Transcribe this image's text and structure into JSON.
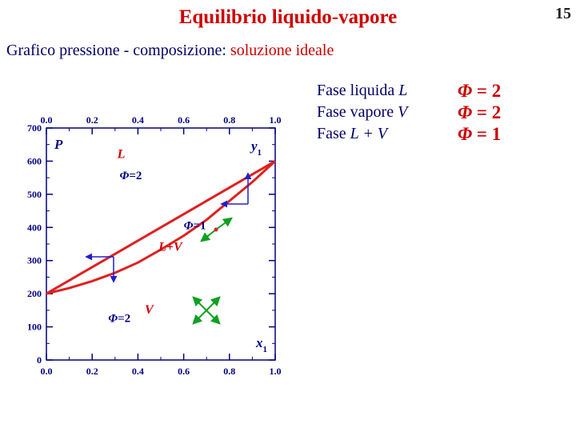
{
  "slide": {
    "title": "Equilibrio liquido-vapore",
    "page_number": "15",
    "subtitle_prefix": "Grafico pressione - composizione: ",
    "subtitle_highlight": "soluzione ideale"
  },
  "phases": [
    {
      "label_text": "Fase liquida ",
      "label_symbol": "L",
      "phi_symbol": "Φ",
      "phi_value": "= 2"
    },
    {
      "label_text": "Fase vapore ",
      "label_symbol": "V",
      "phi_symbol": "Φ",
      "phi_value": "= 2"
    },
    {
      "label_text": "Fase ",
      "label_symbol": "L + V",
      "phi_symbol": "Φ",
      "phi_value": "= 1"
    }
  ],
  "chart_data": {
    "type": "line",
    "x_ticks": [
      "0.0",
      "0.2",
      "0.4",
      "0.6",
      "0.8",
      "1.0"
    ],
    "y_ticks": [
      "0",
      "100",
      "200",
      "300",
      "400",
      "500",
      "600",
      "700"
    ],
    "xlim": [
      0,
      1
    ],
    "ylim": [
      0,
      700
    ],
    "y_axis_label": "P",
    "bottom_axis_label": "x",
    "bottom_axis_subscript": "1",
    "top_axis_label": "y",
    "top_axis_subscript": "1",
    "series": [
      {
        "id": "bubble",
        "x": [
          0,
          1
        ],
        "y": [
          200,
          600
        ]
      },
      {
        "id": "dew",
        "x": [
          0,
          0.1,
          0.2,
          0.3,
          0.4,
          0.5,
          0.6,
          0.7,
          0.8,
          0.9,
          1.0
        ],
        "y": [
          200,
          217,
          238,
          263,
          294,
          333,
          375,
          423,
          480,
          537,
          600
        ]
      }
    ],
    "region_labels": [
      {
        "text": "L",
        "x": 0.31,
        "y": 610
      },
      {
        "text": "L+V",
        "x": 0.49,
        "y": 330
      },
      {
        "text": "V",
        "x": 0.43,
        "y": 140
      }
    ],
    "phi_labels": [
      {
        "symbol": "Φ",
        "value": "=2",
        "x": 0.32,
        "y": 545
      },
      {
        "symbol": "Φ",
        "value": "=1",
        "x": 0.6,
        "y": 395
      },
      {
        "symbol": "Φ",
        "value": "=2",
        "x": 0.27,
        "y": 115
      }
    ],
    "colors": {
      "curve": "#e02020",
      "arrow_blue": "#2020cc",
      "arrow_green": "#10a020",
      "axis": "#000080",
      "label_red": "#cc0000"
    }
  }
}
